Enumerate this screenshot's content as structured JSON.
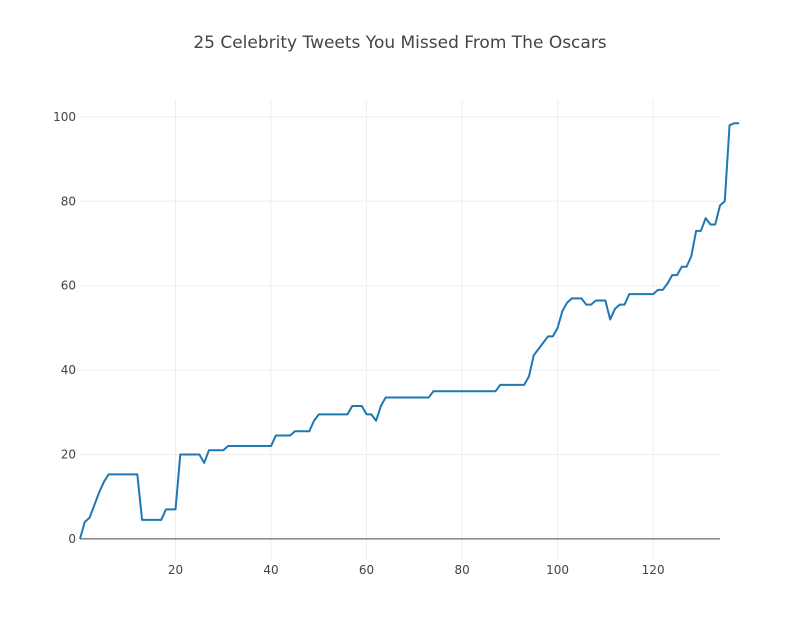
{
  "chart_data": {
    "type": "line",
    "title": "25 Celebrity Tweets You Missed From The Oscars",
    "xlabel": "",
    "ylabel": "",
    "xlim": [
      0,
      134
    ],
    "ylim": [
      -5,
      104
    ],
    "x_ticks": [
      20,
      40,
      60,
      80,
      100,
      120
    ],
    "y_ticks": [
      0,
      20,
      40,
      60,
      80,
      100
    ],
    "grid": true,
    "colors": {
      "line": "#1f77b4",
      "grid": "#eeeeee",
      "zero_line": "#444444"
    },
    "series": [
      {
        "points": [
          [
            0,
            0
          ],
          [
            1,
            4
          ],
          [
            2,
            5
          ],
          [
            3,
            8
          ],
          [
            4,
            11
          ],
          [
            5,
            13.5
          ],
          [
            6,
            15.3
          ],
          [
            8,
            15.3
          ],
          [
            10,
            15.3
          ],
          [
            12,
            15.3
          ],
          [
            13,
            4.5
          ],
          [
            15,
            4.5
          ],
          [
            17,
            4.5
          ],
          [
            18,
            7
          ],
          [
            20,
            7
          ],
          [
            21,
            20
          ],
          [
            23,
            20
          ],
          [
            25,
            20
          ],
          [
            26,
            18
          ],
          [
            27,
            21
          ],
          [
            30,
            21
          ],
          [
            31,
            22
          ],
          [
            35,
            22
          ],
          [
            40,
            22
          ],
          [
            41,
            24.5
          ],
          [
            44,
            24.5
          ],
          [
            45,
            25.5
          ],
          [
            48,
            25.5
          ],
          [
            49,
            28
          ],
          [
            50,
            29.5
          ],
          [
            56,
            29.5
          ],
          [
            57,
            31.5
          ],
          [
            59,
            31.5
          ],
          [
            60,
            29.5
          ],
          [
            61,
            29.5
          ],
          [
            62,
            28
          ],
          [
            63,
            31.5
          ],
          [
            64,
            33.5
          ],
          [
            73,
            33.5
          ],
          [
            74,
            35
          ],
          [
            87,
            35
          ],
          [
            88,
            36.5
          ],
          [
            93,
            36.5
          ],
          [
            94,
            38.5
          ],
          [
            95,
            43.5
          ],
          [
            96,
            45
          ],
          [
            98,
            48
          ],
          [
            99,
            48
          ],
          [
            100,
            50
          ],
          [
            101,
            54
          ],
          [
            102,
            56
          ],
          [
            103,
            57
          ],
          [
            105,
            57
          ],
          [
            106,
            55.5
          ],
          [
            107,
            55.5
          ],
          [
            108,
            56.5
          ],
          [
            110,
            56.5
          ],
          [
            111,
            52
          ],
          [
            112,
            54.5
          ],
          [
            113,
            55.5
          ],
          [
            114,
            55.5
          ],
          [
            115,
            58
          ],
          [
            120,
            58
          ],
          [
            121,
            59
          ],
          [
            122,
            59
          ],
          [
            123,
            60.5
          ],
          [
            124,
            62.5
          ],
          [
            125,
            62.5
          ],
          [
            126,
            64.5
          ],
          [
            127,
            64.5
          ],
          [
            128,
            67
          ],
          [
            129,
            73
          ],
          [
            130,
            73
          ],
          [
            131,
            76
          ],
          [
            132,
            74.5
          ],
          [
            133,
            74.5
          ],
          [
            134,
            79
          ],
          [
            135,
            80
          ],
          [
            136,
            98
          ],
          [
            137,
            98.5
          ],
          [
            138,
            98.5
          ]
        ]
      }
    ]
  }
}
